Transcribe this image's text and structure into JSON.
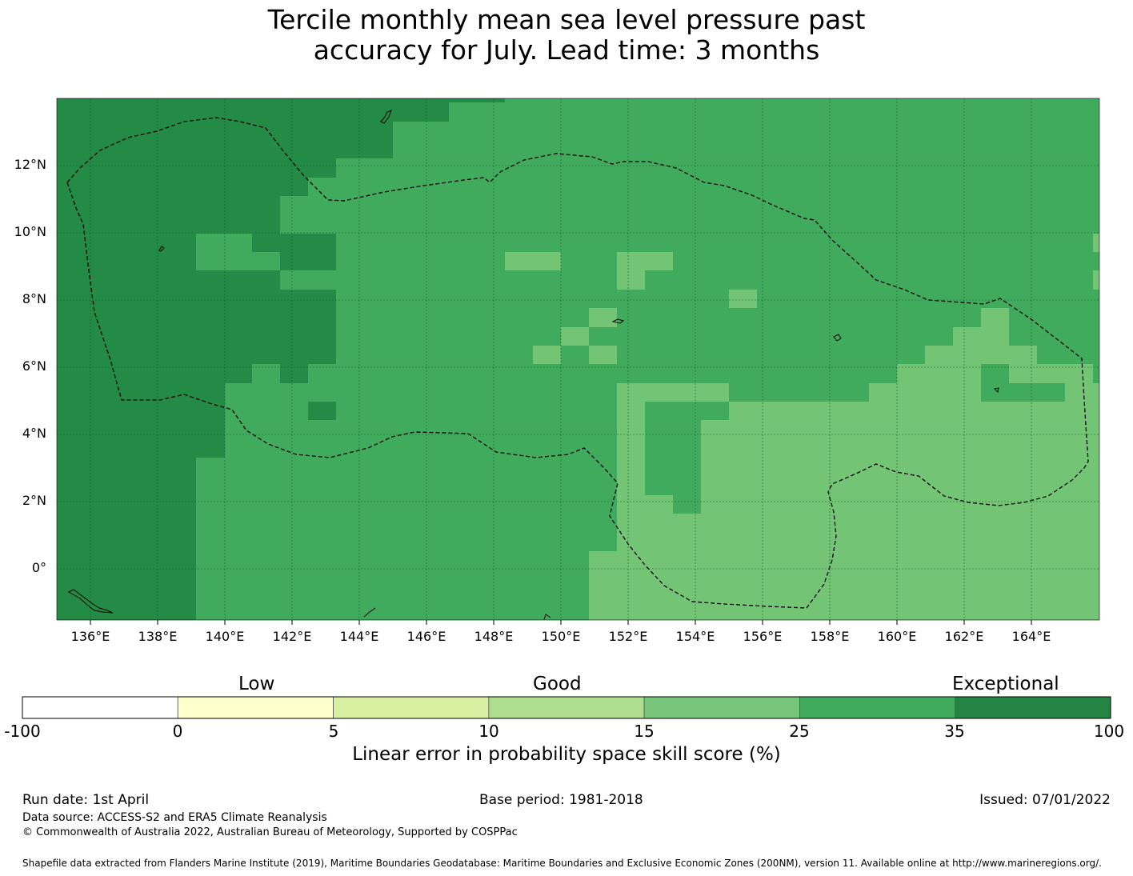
{
  "title_line1": "Tercile monthly mean sea level pressure past",
  "title_line2": "accuracy for July. Lead time: 3 months",
  "map": {
    "lon_labels": [
      "136°E",
      "138°E",
      "140°E",
      "142°E",
      "144°E",
      "146°E",
      "148°E",
      "150°E",
      "152°E",
      "154°E",
      "156°E",
      "158°E",
      "160°E",
      "162°E",
      "164°E"
    ],
    "lat_labels": [
      "12°N",
      "10°N",
      "8°N",
      "6°N",
      "4°N",
      "2°N",
      "0°"
    ],
    "category_colors": {
      "exceptional": "#238b45",
      "high": "#41ab5d",
      "good": "#74c476"
    }
  },
  "colorbar": {
    "categories": [
      "Low",
      "Good",
      "Exceptional"
    ],
    "ticks": [
      "-100",
      "0",
      "5",
      "10",
      "15",
      "25",
      "35",
      "100"
    ],
    "colors": [
      "#ffffff",
      "#ffffcc",
      "#d9f0a3",
      "#addd8e",
      "#78c679",
      "#41ab5d",
      "#238443"
    ],
    "label": "Linear error in probability space skill score (%)"
  },
  "footer": {
    "run_date": "Run date: 1st April",
    "base_period": "Base period: 1981-2018",
    "issued": "Issued: 07/01/2022",
    "data_source": "Data source: ACCESS-S2 and ERA5 Climate Reanalysis",
    "copyright": "© Commonwealth of Australia 2022, Australian Bureau of Meteorology, Supported by COSPPac",
    "shapefile": "Shapefile data extracted from Flanders Marine Institute (2019), Maritime Boundaries Geodatabase: Maritime Boundaries and Exclusive Economic Zones (200NM), version 11. Available online at http://www.marineregions.org/."
  }
}
